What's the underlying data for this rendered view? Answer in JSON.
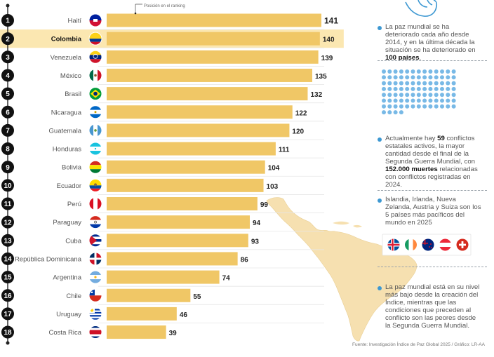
{
  "chart_data": {
    "type": "bar",
    "orientation": "horizontal",
    "xlim": [
      0,
      141
    ],
    "ranks": [
      "1",
      "2",
      "3",
      "4",
      "5",
      "6",
      "7",
      "8",
      "9",
      "10",
      "11",
      "12",
      "13",
      "14",
      "15",
      "16",
      "17",
      "18"
    ],
    "categories": [
      "Haití",
      "Colombia",
      "Venezuela",
      "México",
      "Brasil",
      "Nicaragua",
      "Guatemala",
      "Honduras",
      "Bolivia",
      "Ecuador",
      "Perú",
      "Paraguay",
      "Cuba",
      "República Dominicana",
      "Argentina",
      "Chile",
      "Uruguay",
      "Costa Rica"
    ],
    "values": [
      141,
      140,
      139,
      135,
      132,
      122,
      120,
      111,
      104,
      103,
      99,
      94,
      93,
      86,
      74,
      55,
      46,
      39
    ],
    "highlight": "Colombia",
    "bar_color": "#f0c766",
    "highlight_color": "#fbe7b1",
    "annotation": "Posición en el ranking"
  },
  "sidebar": {
    "p1": {
      "pre": "La paz mundial se ha deteriorado cada año desde 2014, y en la última década la situación se ha deteriorado en ",
      "bold": "100 países",
      "post": "."
    },
    "p2": {
      "pre": "Actualmente hay ",
      "b1": "59",
      "mid": " conflictos estatales activos, la mayor cantidad desde el final de la Segunda Guerra Mundial, con ",
      "b2": "152.000 muertes",
      "post": " relacionadas con conflictos registradas en 2024."
    },
    "p3": {
      "text": "Islandia, Irlanda, Nueva Zelanda, Austria y Suiza son los 5 países más pacíficos del mundo en 2025"
    },
    "p4": {
      "text": "La paz mundial está en su nivel más bajo desde la creación del Índice, mientras que las condiciones que preceden al conflicto son las peores desde la Segunda Guerra Mundial."
    },
    "dot_grid": {
      "total": 100,
      "highlighted": 99,
      "color": "#78b9e6",
      "faded_color": "#d9dde0"
    },
    "peaceful_flags": [
      "iceland-flag-icon",
      "ireland-flag-icon",
      "new-zealand-flag-icon",
      "austria-flag-icon",
      "switzerland-flag-icon"
    ]
  },
  "source": "Fuente: Investigación Índice de Paz Global 2025 / Gráfico: LR-AA",
  "colors": {
    "accent": "#3d98d2",
    "map": "#f6e0b0"
  }
}
